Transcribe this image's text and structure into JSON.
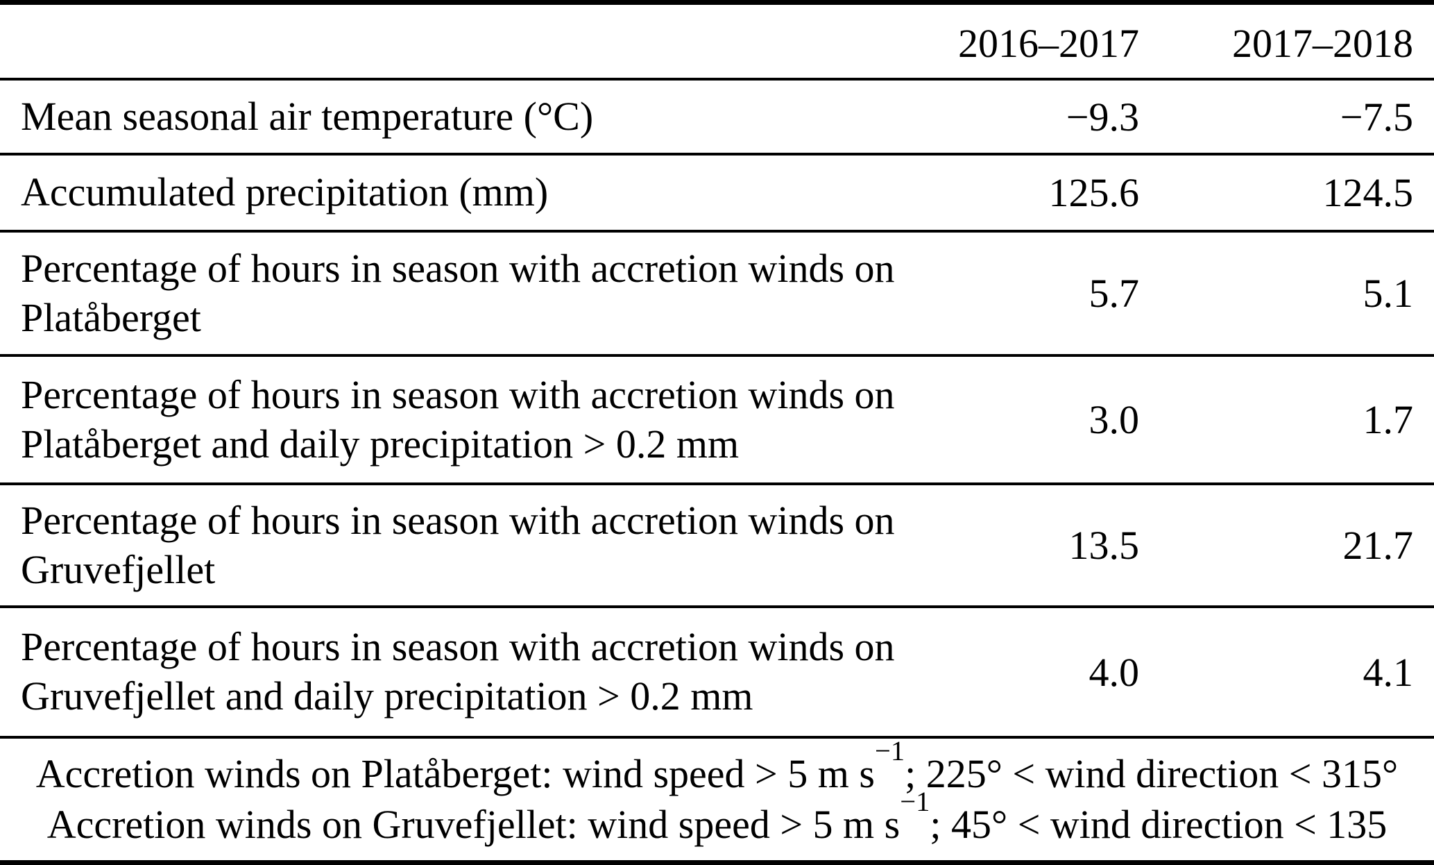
{
  "colors": {
    "text": "#000000",
    "background": "#ffffff",
    "rule": "#000000"
  },
  "table": {
    "columns": [
      "2016–2017",
      "2017–2018"
    ],
    "rows": [
      {
        "label": "Mean seasonal air temperature (°C)",
        "values": [
          "−9.3",
          "−7.5"
        ]
      },
      {
        "label": "Accumulated precipitation (mm)",
        "values": [
          "125.6",
          "124.5"
        ]
      },
      {
        "label": "Percentage of hours in season with accretion winds on\nPlatåberget",
        "values": [
          "5.7",
          "5.1"
        ]
      },
      {
        "label": "Percentage of hours in season with accretion winds on\nPlatåberget and daily precipitation > 0.2 mm",
        "values": [
          "3.0",
          "1.7"
        ]
      },
      {
        "label": "Percentage of hours in season with accretion winds on\nGruvefjellet",
        "values": [
          "13.5",
          "21.7"
        ]
      },
      {
        "label": "Percentage of hours in season with accretion winds on\nGruvefjellet and daily precipitation > 0.2 mm",
        "values": [
          "4.0",
          "4.1"
        ]
      }
    ],
    "footnotes": [
      {
        "segments": [
          {
            "text": "Accretion winds on Platåberget: wind speed > 5 m s"
          },
          {
            "text": "−1",
            "sup": true
          },
          {
            "text": "; 225° < wind direction < 315°"
          }
        ]
      },
      {
        "segments": [
          {
            "text": "Accretion winds on Gruvefjellet: wind speed > 5 m s"
          },
          {
            "text": "−1",
            "sup": true
          },
          {
            "text": "; 45° < wind direction < 135"
          }
        ]
      }
    ]
  }
}
